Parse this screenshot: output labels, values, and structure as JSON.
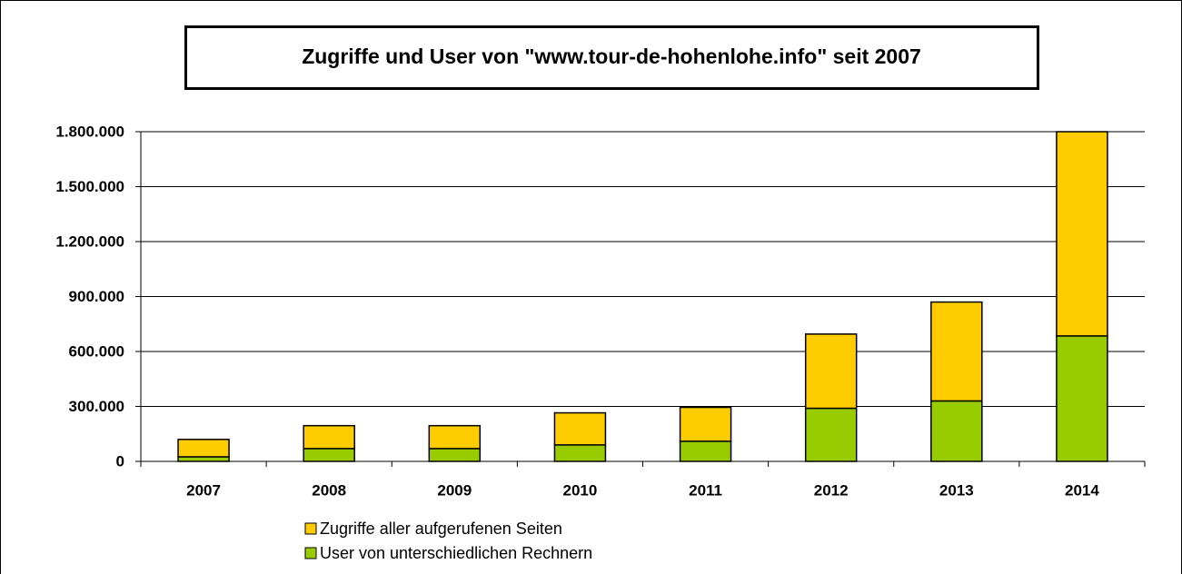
{
  "chart_data": {
    "type": "stacked_bar",
    "title": "Zugriffe und User von \"www.tour-de-hohenlohe.info\" seit 2007",
    "categories": [
      "2007",
      "2008",
      "2009",
      "2010",
      "2011",
      "2012",
      "2013",
      "2014"
    ],
    "series": [
      {
        "name": "User von unterschiedlichen Rechnern",
        "color": "#99cc00",
        "values": [
          25000,
          70000,
          70000,
          90000,
          110000,
          290000,
          330000,
          685000
        ]
      },
      {
        "name": "Zugriffe aller aufgerufenen Seiten",
        "color": "#ffcc00",
        "values": [
          95000,
          125000,
          125000,
          175000,
          185000,
          405000,
          540000,
          1115000
        ]
      }
    ],
    "ylim": [
      0,
      1800000
    ],
    "yticks": [
      0,
      {
        "value": 300000,
        "label": "300.000"
      },
      {
        "value": 600000,
        "label": "600.000"
      },
      {
        "value": 900000,
        "label": "900.000"
      },
      {
        "value": 1200000,
        "label": "1.200.000"
      },
      {
        "value": 1500000,
        "label": "1.500.000"
      },
      {
        "value": 1800000,
        "label": "1.800.000"
      }
    ],
    "grid": true
  }
}
